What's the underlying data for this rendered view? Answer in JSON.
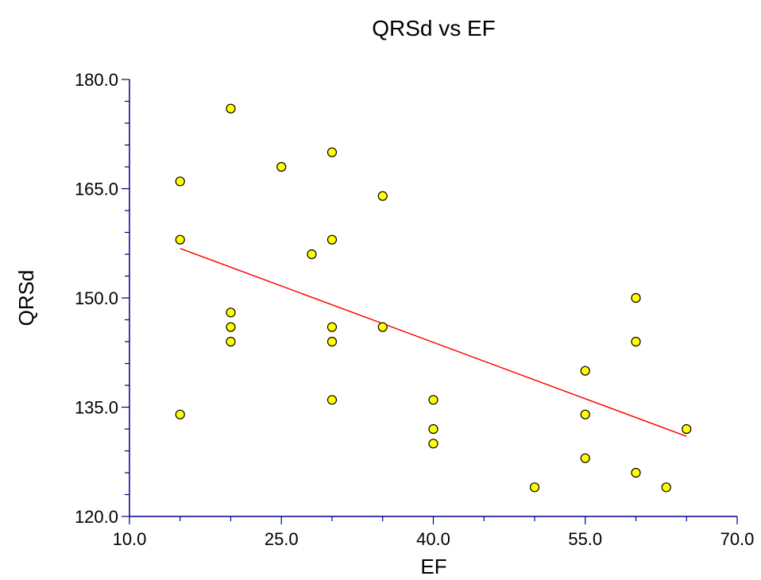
{
  "chart_data": {
    "type": "scatter",
    "title": "QRSd vs EF",
    "xlabel": "EF",
    "ylabel": "QRSd",
    "xlim": [
      10,
      70
    ],
    "ylim": [
      120,
      180
    ],
    "xticks": [
      "10.0",
      "25.0",
      "40.0",
      "55.0",
      "70.0"
    ],
    "yticks": [
      "120.0",
      "135.0",
      "150.0",
      "165.0",
      "180.0"
    ],
    "x_tick_values": [
      10,
      25,
      40,
      55,
      70
    ],
    "y_tick_values": [
      120,
      135,
      150,
      165,
      180
    ],
    "grid": false,
    "point_color": "#ffff00",
    "line_color": "#ff0000",
    "axis_color": "#00008b",
    "points": [
      {
        "x": 15,
        "y": 166
      },
      {
        "x": 15,
        "y": 158
      },
      {
        "x": 15,
        "y": 134
      },
      {
        "x": 20,
        "y": 176
      },
      {
        "x": 20,
        "y": 148
      },
      {
        "x": 20,
        "y": 146
      },
      {
        "x": 20,
        "y": 144
      },
      {
        "x": 25,
        "y": 168
      },
      {
        "x": 28,
        "y": 156
      },
      {
        "x": 30,
        "y": 170
      },
      {
        "x": 30,
        "y": 158
      },
      {
        "x": 30,
        "y": 146
      },
      {
        "x": 30,
        "y": 144
      },
      {
        "x": 30,
        "y": 136
      },
      {
        "x": 35,
        "y": 164
      },
      {
        "x": 35,
        "y": 146
      },
      {
        "x": 40,
        "y": 136
      },
      {
        "x": 40,
        "y": 132
      },
      {
        "x": 40,
        "y": 130
      },
      {
        "x": 50,
        "y": 124
      },
      {
        "x": 55,
        "y": 140
      },
      {
        "x": 55,
        "y": 134
      },
      {
        "x": 55,
        "y": 128
      },
      {
        "x": 60,
        "y": 150
      },
      {
        "x": 60,
        "y": 144
      },
      {
        "x": 60,
        "y": 126
      },
      {
        "x": 63,
        "y": 124
      },
      {
        "x": 65,
        "y": 132
      }
    ],
    "regression_line": {
      "x": [
        15,
        65
      ],
      "y": [
        156.8,
        131.0
      ]
    }
  }
}
